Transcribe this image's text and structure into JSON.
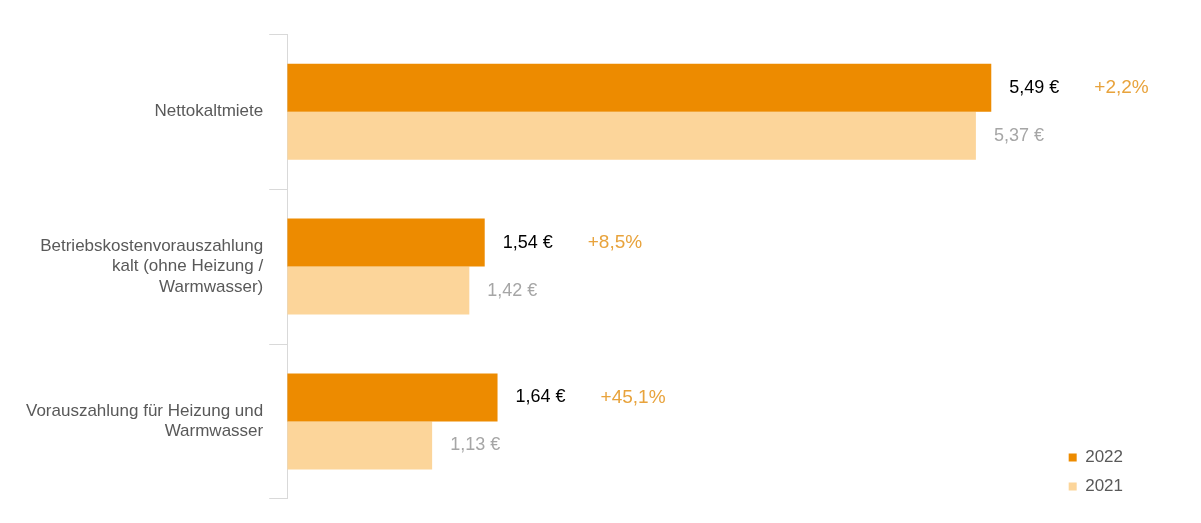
{
  "chart_data": {
    "type": "bar",
    "orientation": "horizontal",
    "categories": [
      "Nettokaltmiete",
      "Betriebskostenvorauszahlung kalt (ohne Heizung / Warmwasser)",
      "Vorauszahlung für Heizung und Warmwasser"
    ],
    "series": [
      {
        "name": "2022",
        "color": "#ed8b00",
        "values": [
          5.49,
          1.54,
          1.64
        ],
        "value_labels": [
          "5,49 €",
          "1,54 €",
          "1,64 €"
        ]
      },
      {
        "name": "2021",
        "color": "#fcd59a",
        "values": [
          5.37,
          1.42,
          1.13
        ],
        "value_labels": [
          "5,37 €",
          "1,42 €",
          "1,13 €"
        ]
      }
    ],
    "tick_labels": "y",
    "grid": false,
    "legend": "bottom right",
    "annotations": [
      "+2,2%",
      "+8,5%",
      "+45,1%"
    ]
  }
}
